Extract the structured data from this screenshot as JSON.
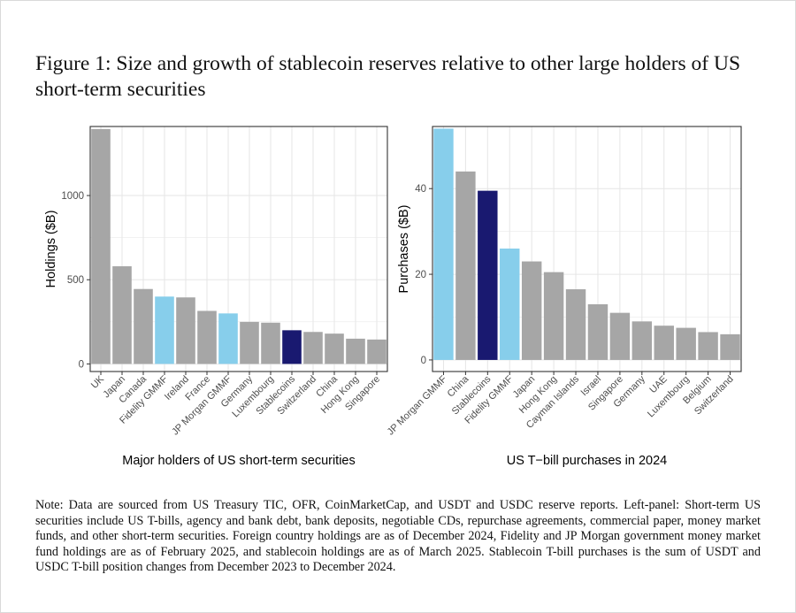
{
  "title": "Figure 1: Size and growth of stablecoin reserves relative to other large holders of US short-term securities",
  "note": "Note: Data are sourced from US Treasury TIC, OFR, CoinMarketCap, and USDT and USDC reserve reports. Left-panel: Short-term US securities include US T-bills, agency and bank debt, bank deposits, negotiable CDs, repurchase agreements, commercial paper, money market funds, and other short-term securities. Foreign country holdings are as of December 2024, Fidelity and JP Morgan government money market fund holdings are as of February 2025, and stablecoin holdings are as of March 2025. Stablecoin T-bill purchases is the sum of USDT and USDC T-bill position changes from December 2023 to December 2024.",
  "colors": {
    "country": "#a6a6a6",
    "mmf": "#87ceeb",
    "stablecoin": "#191970",
    "panel_bg": "#ffffff",
    "grid": "#e6e6e6",
    "axis_text": "#4d4d4d"
  },
  "chart_data": [
    {
      "type": "bar",
      "title": "",
      "xlabel": "Major holders of US short-term securities",
      "ylabel": "Holdings ($B)",
      "ylim": [
        -45,
        1410
      ],
      "yticks": [
        0,
        500,
        1000
      ],
      "ytick_labels": [
        "0",
        "500",
        "1000"
      ],
      "grid": true,
      "categories": [
        "UK",
        "Japan",
        "Canada",
        "Fidelity GMMF",
        "Ireland",
        "France",
        "JP Morgan GMMF",
        "Germany",
        "Luxembourg",
        "Stablecoins",
        "Switzerland",
        "China",
        "Hong Kong",
        "Singapore"
      ],
      "values": [
        1395,
        580,
        445,
        400,
        395,
        315,
        300,
        250,
        245,
        200,
        190,
        180,
        150,
        145
      ],
      "groups": [
        "country",
        "country",
        "country",
        "mmf",
        "country",
        "country",
        "mmf",
        "country",
        "country",
        "stablecoin",
        "country",
        "country",
        "country",
        "country"
      ]
    },
    {
      "type": "bar",
      "title": "",
      "xlabel": "US T−bill purchases in 2024",
      "ylabel": "Purchases ($B)",
      "ylim": [
        -2.7,
        54.5
      ],
      "yticks": [
        0,
        20,
        40
      ],
      "ytick_labels": [
        "0",
        "20",
        "40"
      ],
      "grid": true,
      "categories": [
        "JP Morgan GMMF",
        "China",
        "Stablecoins",
        "Fidelity GMMF",
        "Japan",
        "Hong Kong",
        "Cayman Islands",
        "Israel",
        "Singapore",
        "Germany",
        "UAE",
        "Luxembourg",
        "Belgium",
        "Switzerland"
      ],
      "values": [
        54,
        44,
        39.5,
        26,
        23,
        20.5,
        16.5,
        13,
        11,
        9,
        8,
        7.5,
        6.5,
        6
      ],
      "groups": [
        "mmf",
        "country",
        "stablecoin",
        "mmf",
        "country",
        "country",
        "country",
        "country",
        "country",
        "country",
        "country",
        "country",
        "country",
        "country"
      ]
    }
  ]
}
